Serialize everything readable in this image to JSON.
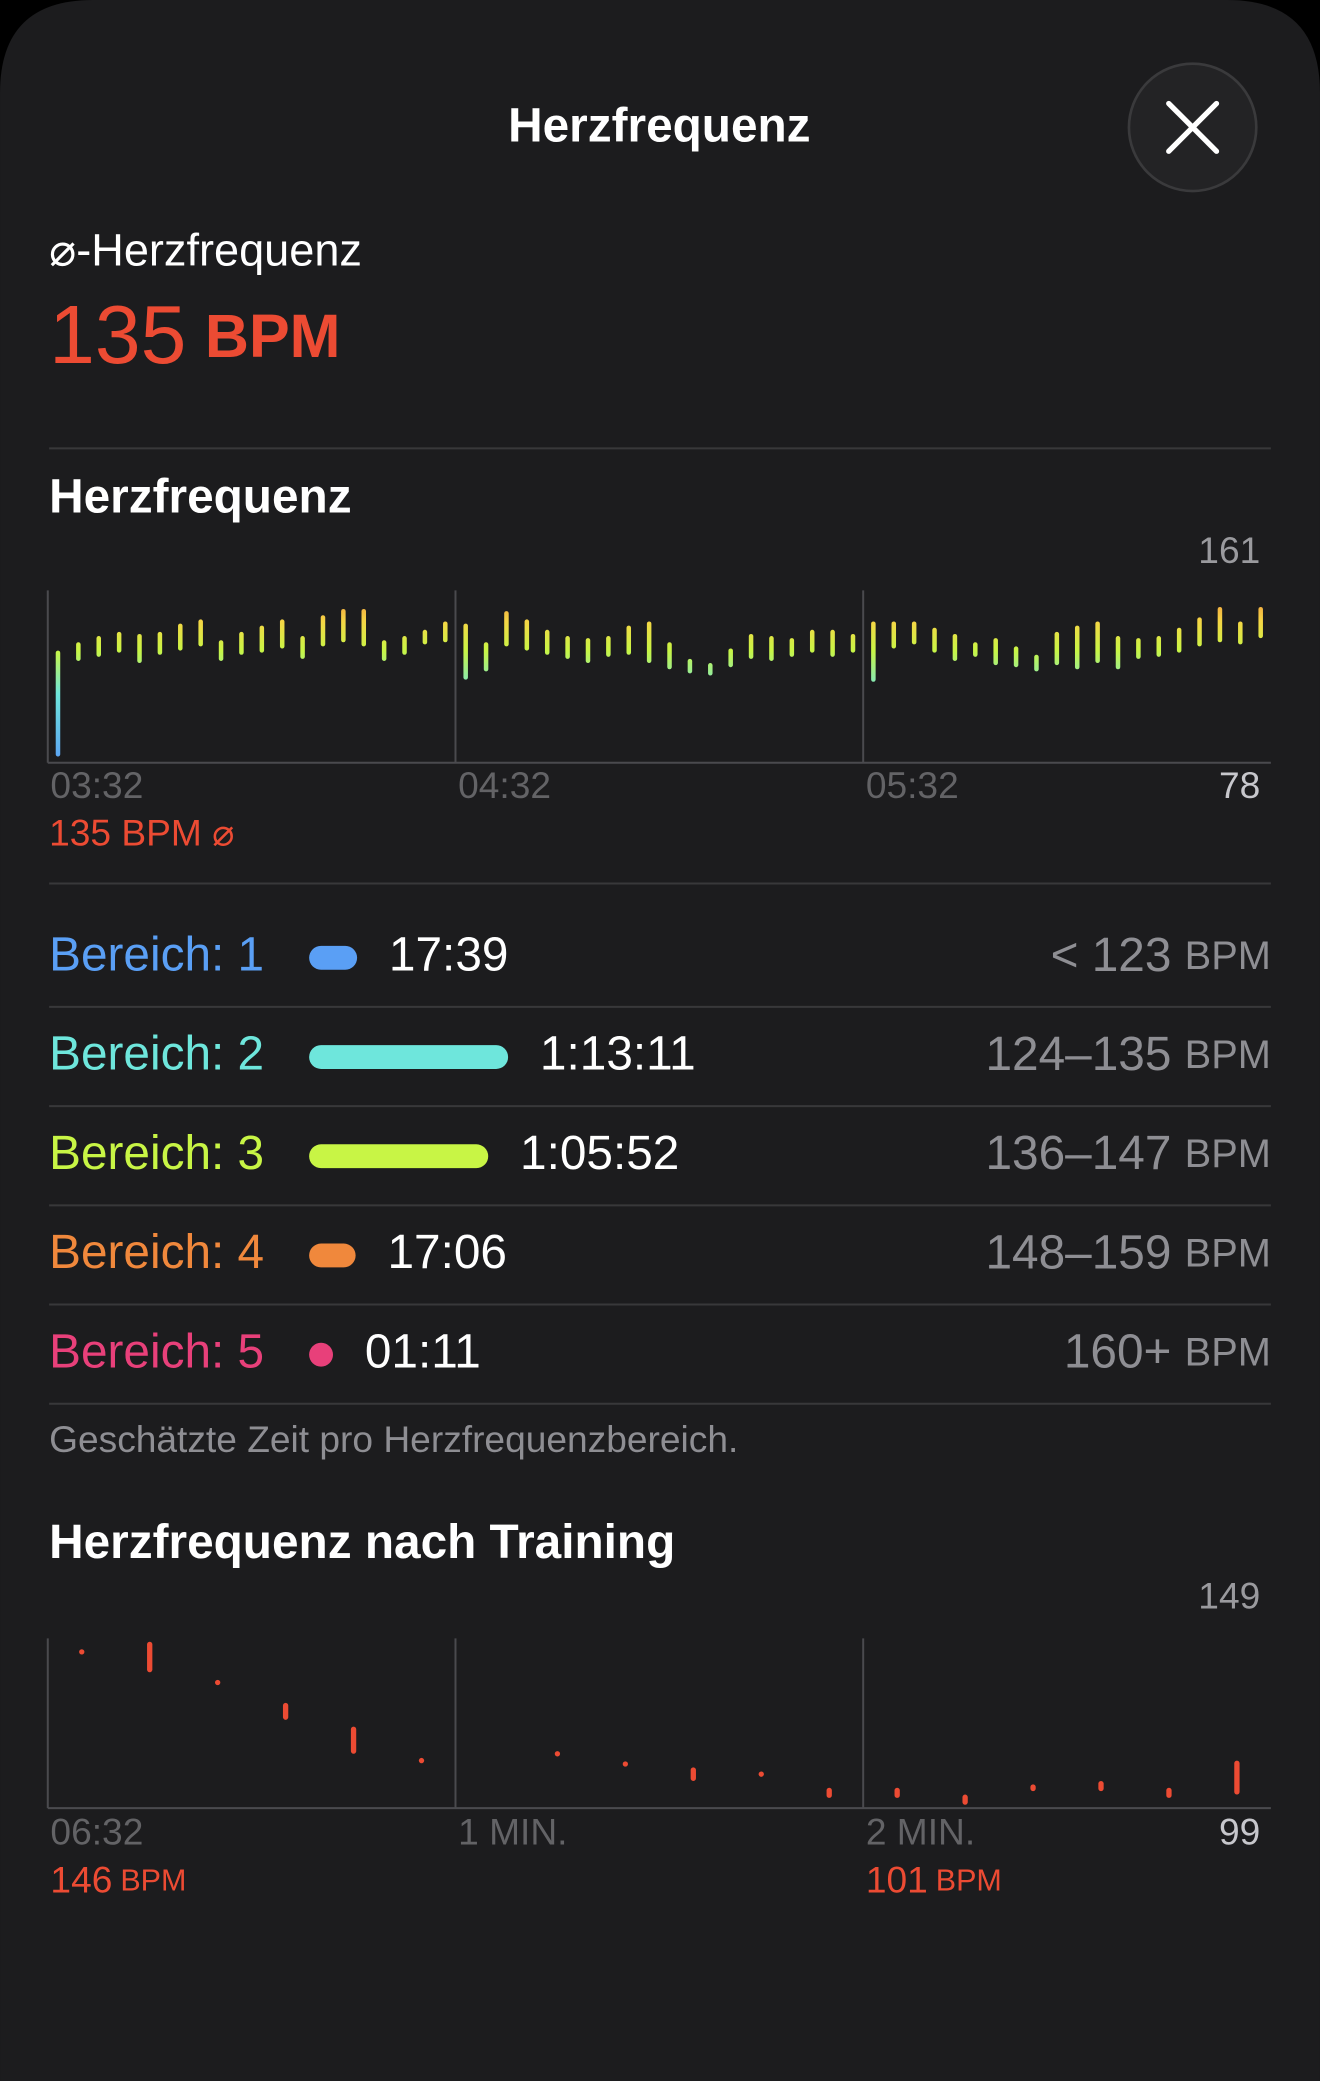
{
  "header": {
    "title": "Herzfrequenz"
  },
  "summary": {
    "label": "⌀-Herzfrequenz",
    "value": 135,
    "unit": "BPM"
  },
  "chart_data": [
    {
      "type": "range-bar",
      "title": "Herzfrequenz",
      "x": [
        1.5,
        4.5,
        7.5,
        10.5,
        13.5,
        16.5,
        19.5,
        22.5,
        25.5,
        28.5,
        31.5,
        34.5,
        37.5,
        40.5,
        43.5,
        46.5,
        49.5,
        52.5,
        55.5,
        58.5,
        61.5,
        64.5,
        67.5,
        70.5,
        73.5,
        76.5,
        79.5,
        82.5,
        85.5,
        88.5,
        91.5,
        94.5,
        97.5,
        100.5,
        103.5,
        106.5,
        109.5,
        112.5,
        115.5,
        118.5,
        121.5,
        124.5,
        127.5,
        130.5,
        133.5,
        136.5,
        139.5,
        142.5,
        145.5,
        148.5,
        151.5,
        154.5,
        157.5,
        160.5,
        163.5,
        166.5,
        169.5,
        172.5,
        175.5,
        178.5
      ],
      "values": [
        [
          81,
          132
        ],
        [
          127,
          136
        ],
        [
          129,
          139
        ],
        [
          131,
          141
        ],
        [
          126,
          140
        ],
        [
          130,
          141
        ],
        [
          132,
          145
        ],
        [
          134,
          147
        ],
        [
          127,
          137
        ],
        [
          130,
          141
        ],
        [
          131,
          144
        ],
        [
          133,
          147
        ],
        [
          128,
          139
        ],
        [
          134,
          149
        ],
        [
          136,
          152
        ],
        [
          134,
          152
        ],
        [
          127,
          137
        ],
        [
          130,
          139
        ],
        [
          135,
          142
        ],
        [
          136,
          146
        ],
        [
          118,
          145
        ],
        [
          122,
          136
        ],
        [
          134,
          151
        ],
        [
          132,
          147
        ],
        [
          130,
          142
        ],
        [
          128,
          139
        ],
        [
          126,
          138
        ],
        [
          129,
          139
        ],
        [
          130,
          144
        ],
        [
          126,
          146
        ],
        [
          123,
          136
        ],
        [
          121,
          128
        ],
        [
          120,
          126
        ],
        [
          124,
          133
        ],
        [
          128,
          140
        ],
        [
          127,
          139
        ],
        [
          129,
          138
        ],
        [
          131,
          142
        ],
        [
          129,
          142
        ],
        [
          131,
          140
        ],
        [
          117,
          146
        ],
        [
          133,
          146
        ],
        [
          135,
          146
        ],
        [
          131,
          143
        ],
        [
          127,
          140
        ],
        [
          129,
          136
        ],
        [
          125,
          138
        ],
        [
          124,
          134
        ],
        [
          122,
          130
        ],
        [
          125,
          141
        ],
        [
          123,
          144
        ],
        [
          126,
          146
        ],
        [
          123,
          139
        ],
        [
          128,
          138
        ],
        [
          129,
          139
        ],
        [
          131,
          143
        ],
        [
          134,
          148
        ],
        [
          136,
          153
        ],
        [
          135,
          146
        ],
        [
          138,
          153
        ]
      ],
      "xlim": [
        0,
        180
      ],
      "xticks": [
        {
          "value": 0,
          "label": "03:32"
        },
        {
          "value": 60,
          "label": "04:32"
        },
        {
          "value": 120,
          "label": "05:32"
        }
      ],
      "ylim": [
        78,
        161
      ],
      "yticks": [
        78,
        161
      ],
      "colors": [
        "#5a9ff5",
        "#6ee6dc",
        "#c8f545",
        "#f5d645",
        "#f0883c"
      ],
      "average_label": "135 BPM ⌀"
    },
    {
      "type": "range-bar",
      "title": "Herzfrequenz nach Training",
      "x": [
        5,
        15,
        25,
        35,
        45,
        55,
        75,
        85,
        95,
        105,
        115,
        125,
        135,
        145,
        155,
        165,
        175
      ],
      "values": [
        [
          145,
          145
        ],
        [
          139,
          148
        ],
        [
          136,
          136
        ],
        [
          125,
          130
        ],
        [
          115,
          123
        ],
        [
          113,
          113
        ],
        [
          115,
          115
        ],
        [
          112,
          112
        ],
        [
          107,
          111
        ],
        [
          109,
          109
        ],
        [
          102,
          105
        ],
        [
          102,
          105
        ],
        [
          100,
          103
        ],
        [
          104,
          106
        ],
        [
          104,
          107
        ],
        [
          102,
          105
        ],
        [
          103,
          113
        ]
      ],
      "xlim": [
        0,
        180
      ],
      "xticks": [
        {
          "value": 0,
          "label": "06:32"
        },
        {
          "value": 60,
          "label": "1 MIN."
        },
        {
          "value": 120,
          "label": "2 MIN."
        }
      ],
      "ylim": [
        99,
        149
      ],
      "yticks": [
        99,
        149
      ],
      "color": "#ec4b33",
      "annotations": [
        {
          "x": 0,
          "value": 146,
          "unit": "BPM"
        },
        {
          "x": 120,
          "value": 101,
          "unit": "BPM"
        }
      ]
    }
  ],
  "zones": [
    {
      "name": "Bereich: 1",
      "color": "#5a9ff5",
      "duration": {
        "value": 1059,
        "label": "17:39"
      },
      "range": "< 123",
      "unit": "BPM"
    },
    {
      "name": "Bereich: 2",
      "color": "#6ee6dc",
      "duration": {
        "value": 4391,
        "label": "1:13:11"
      },
      "range": "124–135",
      "unit": "BPM"
    },
    {
      "name": "Bereich: 3",
      "color": "#c8f545",
      "duration": {
        "value": 3952,
        "label": "1:05:52"
      },
      "range": "136–147",
      "unit": "BPM"
    },
    {
      "name": "Bereich: 4",
      "color": "#f0883c",
      "duration": {
        "value": 1026,
        "label": "17:06"
      },
      "range": "148–159",
      "unit": "BPM"
    },
    {
      "name": "Bereich: 5",
      "color": "#e8407a",
      "duration": {
        "value": 71,
        "label": "01:11"
      },
      "range": "160+",
      "unit": "BPM"
    }
  ],
  "footnote": "Geschätzte Zeit pro Herzfrequenzbereich."
}
